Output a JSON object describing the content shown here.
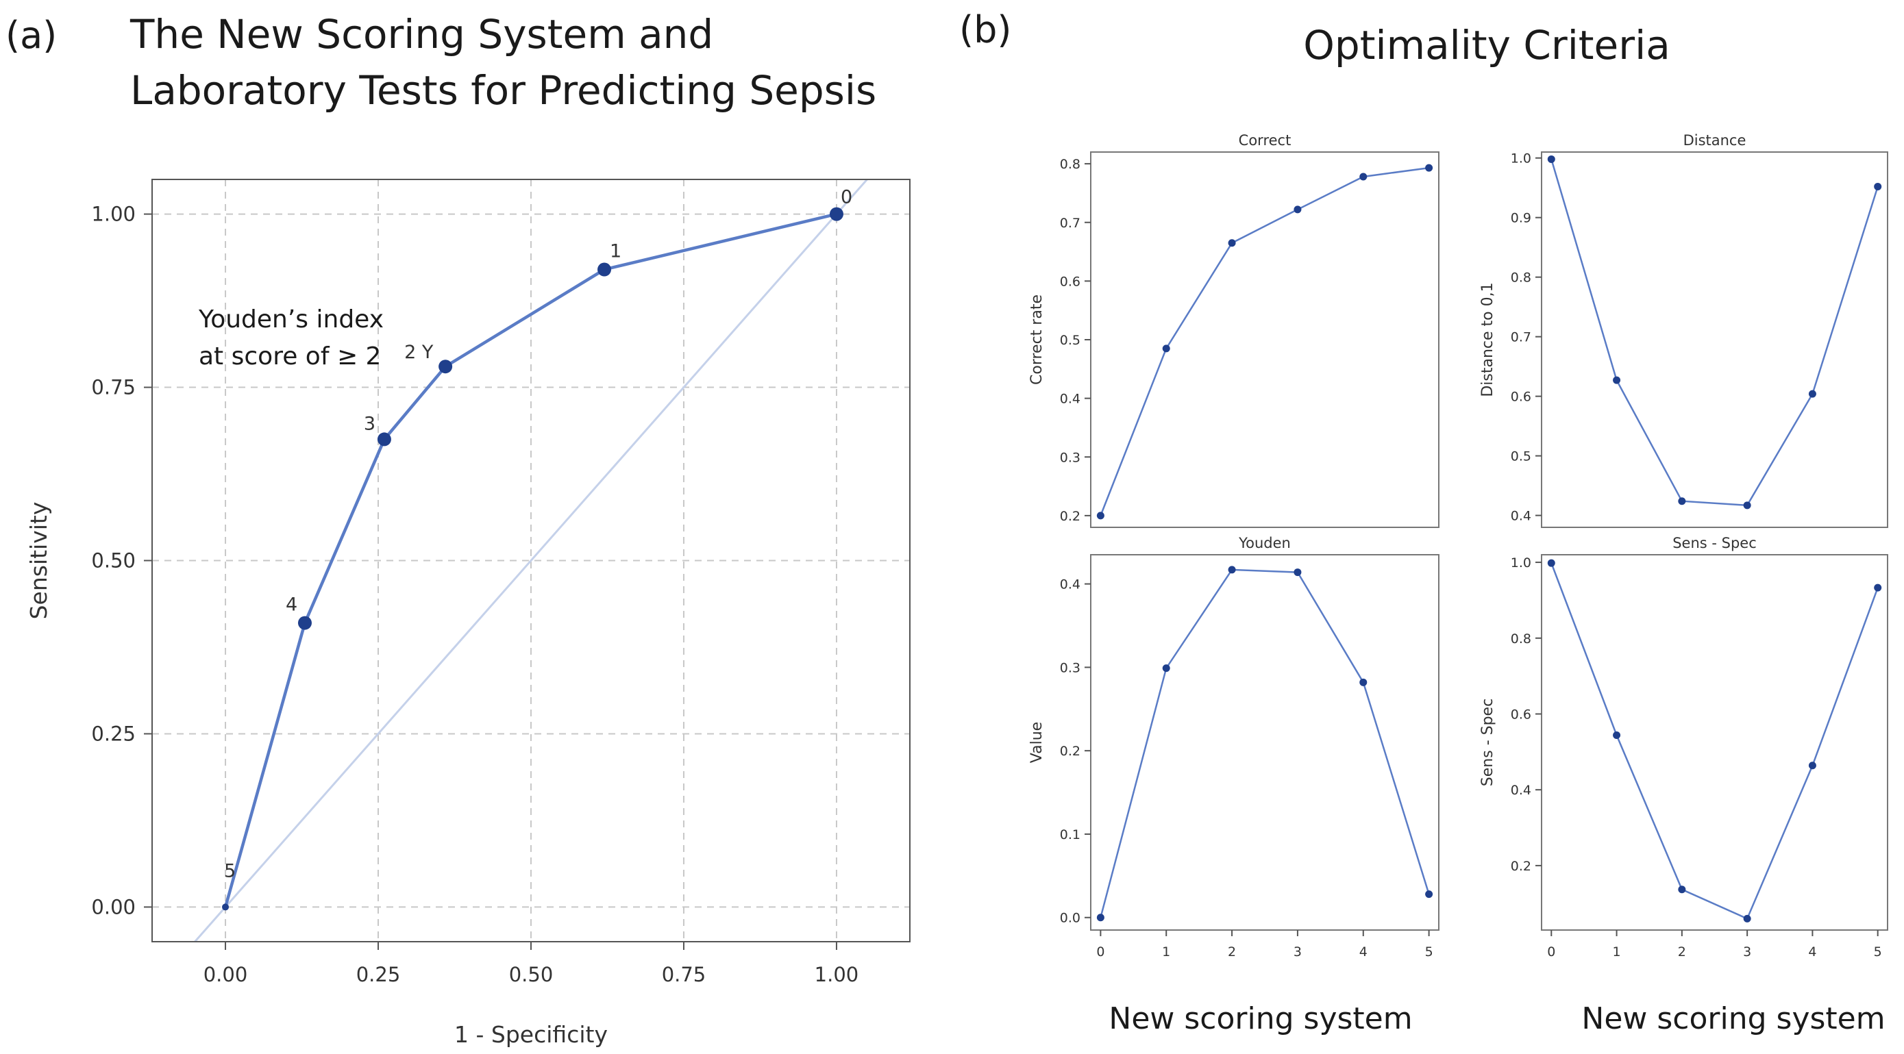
{
  "panel_a": {
    "label": "(a)",
    "title_line1": "The New Scoring System and",
    "title_line2": "Laboratory Tests for Predicting Sepsis",
    "annotation_line1": "Youden’s index",
    "annotation_line2": "at score of ≥ 2"
  },
  "panel_b": {
    "label": "(b)",
    "title": "Optimality Criteria",
    "xlabel_left": "New scoring system",
    "xlabel_right": "New scoring system"
  },
  "colors": {
    "series": "#2f4f9a",
    "series_light": "#5a7cc6",
    "diagonal": "#c5d1ea",
    "point": "#1f3f8c"
  },
  "chart_data": [
    {
      "id": "roc",
      "type": "line",
      "xlabel": "1 - Specificity",
      "ylabel": "Sensitivity",
      "xlim": [
        -0.12,
        1.12
      ],
      "ylim": [
        -0.05,
        1.05
      ],
      "xticks": [
        0.0,
        0.25,
        0.5,
        0.75,
        1.0
      ],
      "xtick_labels": [
        "0.00",
        "0.25",
        "0.50",
        "0.75",
        "1.00"
      ],
      "yticks": [
        0.0,
        0.25,
        0.5,
        0.75,
        1.0
      ],
      "ytick_labels": [
        "0.00",
        "0.25",
        "0.50",
        "0.75",
        "1.00"
      ],
      "grid": true,
      "points": [
        {
          "x": 0.0,
          "y": 0.0,
          "label": "5"
        },
        {
          "x": 0.13,
          "y": 0.41,
          "label": "4"
        },
        {
          "x": 0.26,
          "y": 0.675,
          "label": "3"
        },
        {
          "x": 0.36,
          "y": 0.78,
          "label": "2 Y"
        },
        {
          "x": 0.62,
          "y": 0.92,
          "label": "1"
        },
        {
          "x": 1.0,
          "y": 1.0,
          "label": "0"
        }
      ]
    },
    {
      "id": "correct",
      "type": "line",
      "title": "Correct",
      "ylabel": "Correct rate",
      "x": [
        0,
        1,
        2,
        3,
        4,
        5
      ],
      "values": [
        0.2,
        0.485,
        0.665,
        0.722,
        0.778,
        0.793
      ],
      "ylim": [
        0.18,
        0.82
      ],
      "yticks": [
        0.2,
        0.3,
        0.4,
        0.5,
        0.6,
        0.7,
        0.8
      ],
      "ytick_labels": [
        "0.2",
        "0.3",
        "0.4",
        "0.5",
        "0.6",
        "0.7",
        "0.8"
      ]
    },
    {
      "id": "distance",
      "type": "line",
      "title": "Distance",
      "ylabel": "Distance to 0,1",
      "x": [
        0,
        1,
        2,
        3,
        4,
        5
      ],
      "values": [
        0.998,
        0.627,
        0.424,
        0.417,
        0.604,
        0.952
      ],
      "ylim": [
        0.38,
        1.01
      ],
      "yticks": [
        0.4,
        0.5,
        0.6,
        0.7,
        0.8,
        0.9,
        1.0
      ],
      "ytick_labels": [
        "0.4",
        "0.5",
        "0.6",
        "0.7",
        "0.8",
        "0.9",
        "1.0"
      ]
    },
    {
      "id": "youden",
      "type": "line",
      "title": "Youden",
      "ylabel": "Value",
      "x": [
        0,
        1,
        2,
        3,
        4,
        5
      ],
      "values": [
        0.0,
        0.299,
        0.417,
        0.414,
        0.282,
        0.028
      ],
      "ylim": [
        -0.015,
        0.435
      ],
      "yticks": [
        0.0,
        0.1,
        0.2,
        0.3,
        0.4
      ],
      "ytick_labels": [
        "0.0",
        "0.1",
        "0.2",
        "0.3",
        "0.4"
      ],
      "xtick_labels": [
        "0",
        "1",
        "2",
        "3",
        "4",
        "5"
      ]
    },
    {
      "id": "sensspec",
      "type": "line",
      "title": "Sens - Spec",
      "ylabel": "Sens - Spec",
      "x": [
        0,
        1,
        2,
        3,
        4,
        5
      ],
      "values": [
        0.998,
        0.544,
        0.137,
        0.06,
        0.464,
        0.933
      ],
      "ylim": [
        0.03,
        1.02
      ],
      "yticks": [
        0.2,
        0.4,
        0.6,
        0.8,
        1.0
      ],
      "ytick_labels": [
        "0.2",
        "0.4",
        "0.6",
        "0.8",
        "1.0"
      ],
      "xtick_labels": [
        "0",
        "1",
        "2",
        "3",
        "4",
        "5"
      ]
    }
  ]
}
